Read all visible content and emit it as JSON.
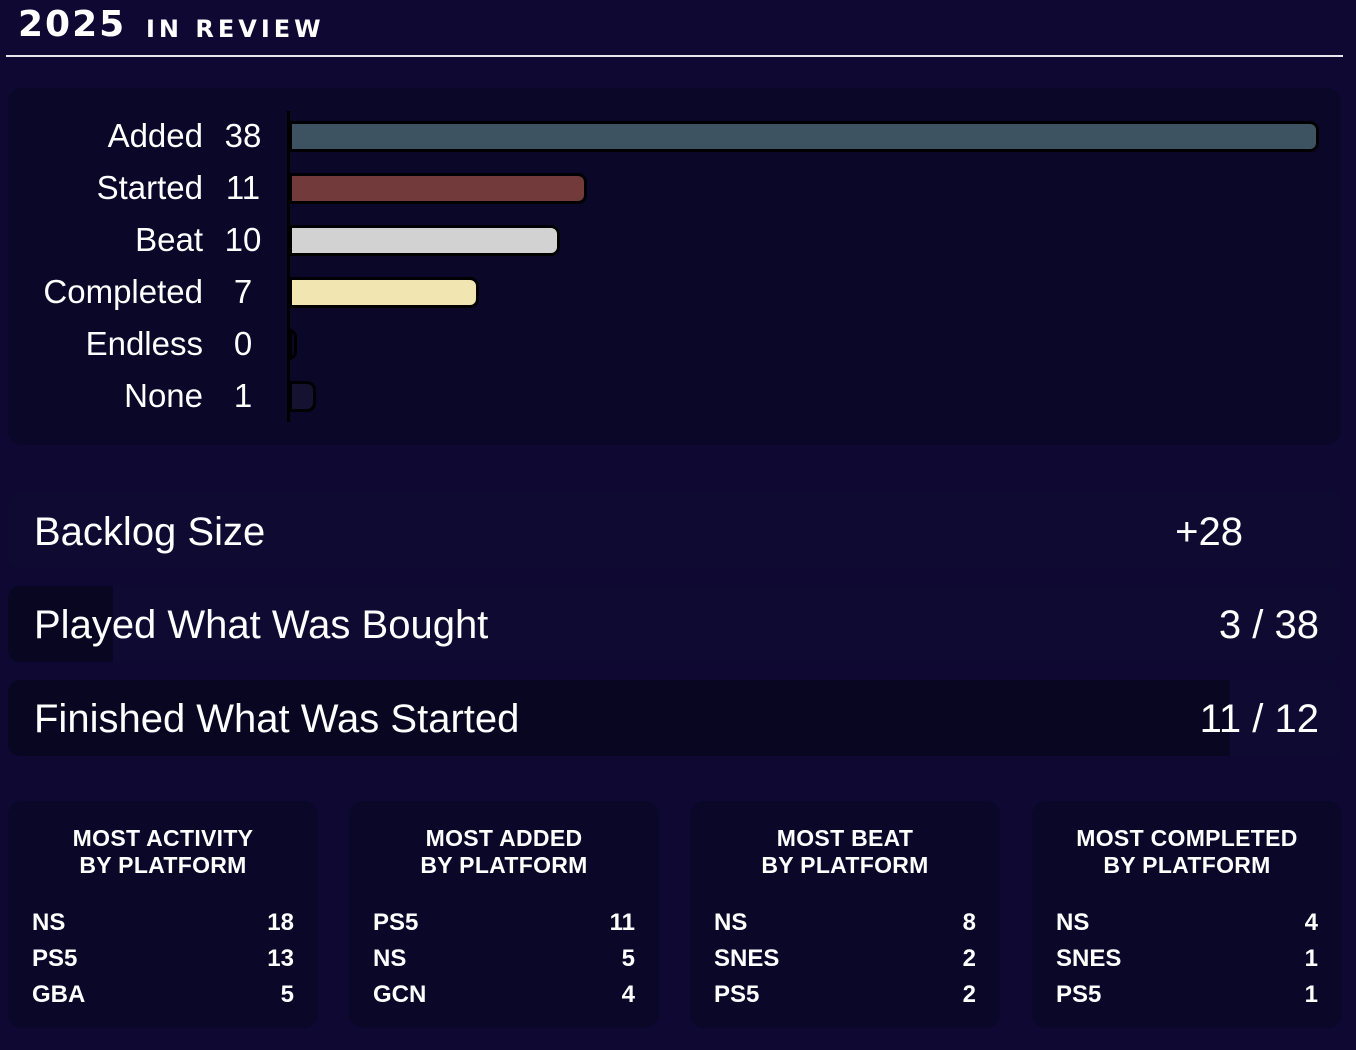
{
  "header": {
    "year": "2025",
    "subtitle": "IN REVIEW"
  },
  "chart_data": {
    "type": "bar",
    "orientation": "horizontal",
    "categories": [
      "Added",
      "Started",
      "Beat",
      "Completed",
      "Endless",
      "None"
    ],
    "values": [
      38,
      11,
      10,
      7,
      0,
      1
    ],
    "colors": [
      "#3d5362",
      "#733a3c",
      "#d2d2d2",
      "#f1e5b2",
      "#0a0728",
      "#141230"
    ],
    "xlim": [
      0,
      38
    ]
  },
  "stats": {
    "backlog": {
      "label": "Backlog Size",
      "value": "+28"
    },
    "played": {
      "label": "Played What Was Bought",
      "value": "3 / 38",
      "fraction": 0.079
    },
    "finished": {
      "label": "Finished What Was Started",
      "value": "11 / 12",
      "fraction": 0.917
    }
  },
  "cards": [
    {
      "title1": "MOST ACTIVITY",
      "title2": "BY PLATFORM",
      "items": [
        {
          "name": "NS",
          "count": "18"
        },
        {
          "name": "PS5",
          "count": "13"
        },
        {
          "name": "GBA",
          "count": "5"
        }
      ]
    },
    {
      "title1": "MOST ADDED",
      "title2": "BY PLATFORM",
      "items": [
        {
          "name": "PS5",
          "count": "11"
        },
        {
          "name": "NS",
          "count": "5"
        },
        {
          "name": "GCN",
          "count": "4"
        }
      ]
    },
    {
      "title1": "MOST BEAT",
      "title2": "BY PLATFORM",
      "items": [
        {
          "name": "NS",
          "count": "8"
        },
        {
          "name": "SNES",
          "count": "2"
        },
        {
          "name": "PS5",
          "count": "2"
        }
      ]
    },
    {
      "title1": "MOST COMPLETED",
      "title2": "BY PLATFORM",
      "items": [
        {
          "name": "NS",
          "count": "4"
        },
        {
          "name": "SNES",
          "count": "1"
        },
        {
          "name": "PS5",
          "count": "1"
        }
      ]
    }
  ]
}
